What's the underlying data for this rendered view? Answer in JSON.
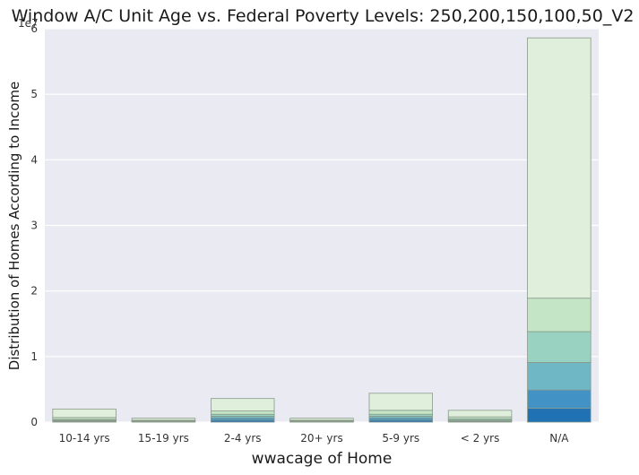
{
  "chart_data": {
    "type": "bar",
    "stacked": true,
    "title": "Window A/C Unit Age vs. Federal Poverty Levels: 250,200,150,100,50_V2",
    "xlabel": "wwacage of Home",
    "ylabel": "Distribution of Homes According to Income",
    "ylim": [
      0,
      6
    ],
    "yticks": [
      "0",
      "1",
      "2",
      "3",
      "4",
      "5",
      "6"
    ],
    "scale_label": "1e7",
    "grid": true,
    "categories": [
      "10-14 yrs",
      "15-19 yrs",
      "2-4 yrs",
      "20+ yrs",
      "5-9 yrs",
      "< 2 yrs",
      "N/A"
    ],
    "series": [
      {
        "values": [
          0.01,
          0.005,
          0.03,
          0.005,
          0.03,
          0.01,
          0.21
        ],
        "color": "#2171b5"
      },
      {
        "values": [
          0.01,
          0.005,
          0.03,
          0.005,
          0.03,
          0.01,
          0.28
        ],
        "color": "#4292c6"
      },
      {
        "values": [
          0.01,
          0.005,
          0.03,
          0.005,
          0.03,
          0.01,
          0.42
        ],
        "color": "#6fb7c4"
      },
      {
        "values": [
          0.01,
          0.005,
          0.03,
          0.005,
          0.03,
          0.02,
          0.47
        ],
        "color": "#99d2c0"
      },
      {
        "values": [
          0.03,
          0.01,
          0.05,
          0.01,
          0.06,
          0.03,
          0.51
        ],
        "color": "#c4e5c6"
      },
      {
        "values": [
          0.13,
          0.03,
          0.19,
          0.03,
          0.26,
          0.1,
          3.97
        ],
        "color": "#dfefdb"
      }
    ],
    "totals": [
      0.2,
      0.06,
      0.37,
      0.06,
      0.45,
      0.18,
      5.86
    ]
  }
}
